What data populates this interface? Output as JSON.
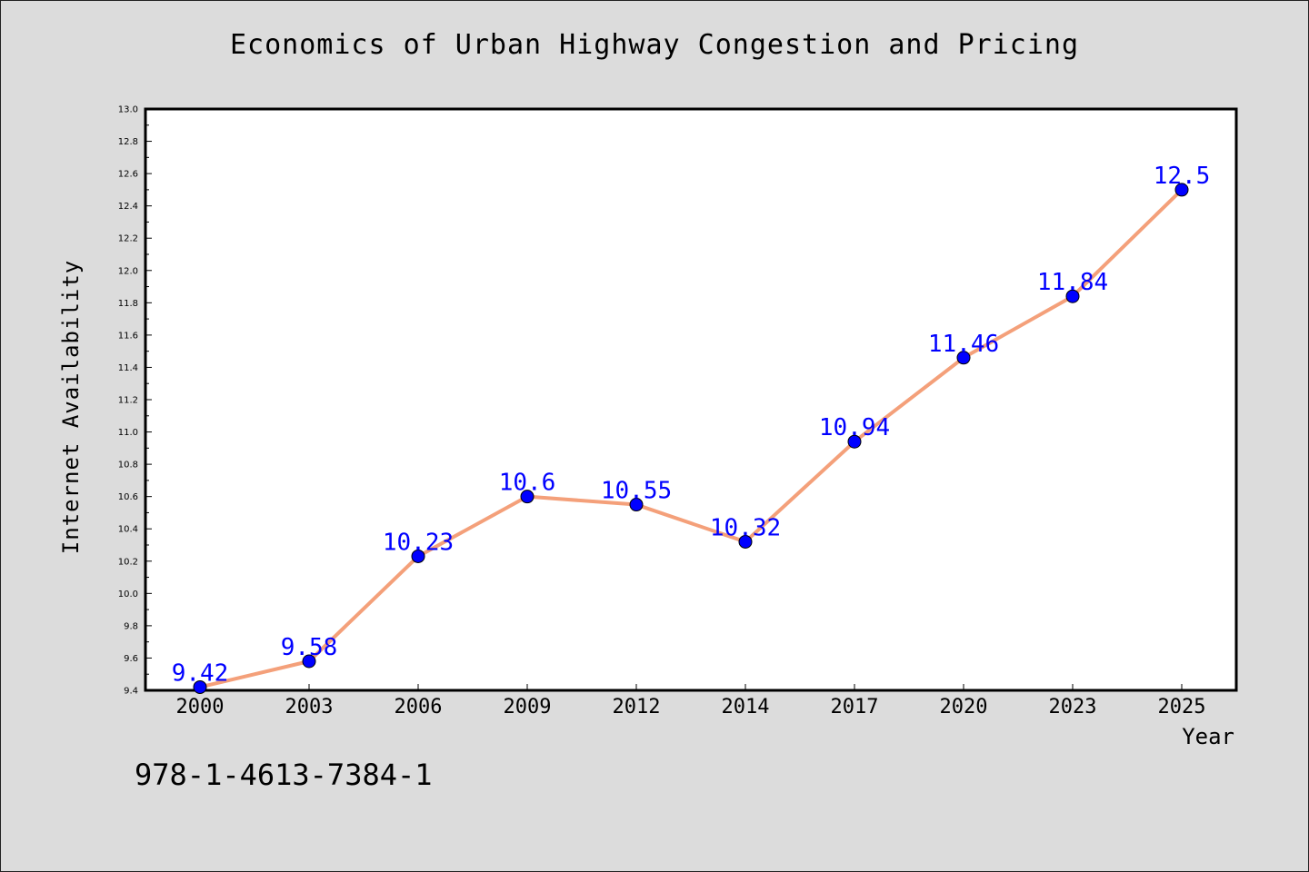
{
  "title": "Economics of Urban Highway Congestion and Pricing",
  "isbn": "978-1-4613-7384-1",
  "colors": {
    "background": "#dcdcdc",
    "plot_area": "#ffffff",
    "line": "#f4a07a",
    "marker": "#0000ff",
    "data_label": "#0000ff"
  },
  "chart_data": {
    "type": "line",
    "title": "Economics of Urban Highway Congestion and Pricing",
    "xlabel": "Year",
    "ylabel": "Internet Availability",
    "categories": [
      "2000",
      "2003",
      "2006",
      "2009",
      "2012",
      "2014",
      "2017",
      "2020",
      "2023",
      "2025"
    ],
    "series": [
      {
        "values": [
          9.42,
          9.58,
          10.23,
          10.6,
          10.55,
          10.32,
          10.94,
          11.46,
          11.84,
          12.5
        ],
        "labels": [
          "9.42",
          "9.58",
          "10.23",
          "10.6",
          "10.55",
          "10.32",
          "10.94",
          "11.46",
          "11.84",
          "12.5"
        ]
      }
    ],
    "ylim": [
      9.4,
      13.0
    ],
    "yticks": [
      "9.4",
      "9.6",
      "9.8",
      "10.0",
      "10.2",
      "10.4",
      "10.6",
      "10.8",
      "11.0",
      "11.2",
      "11.4",
      "11.6",
      "11.8",
      "12.0",
      "12.2",
      "12.4",
      "12.6",
      "12.8",
      "13.0"
    ],
    "grid": false,
    "legend": "none"
  }
}
